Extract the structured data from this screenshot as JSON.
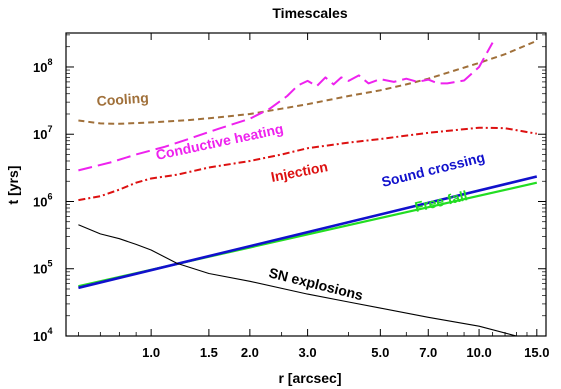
{
  "chart_data": {
    "type": "line",
    "title": "Timescales",
    "xlabel": "r [arcsec]",
    "ylabel": "t [yrs]",
    "x_scale": "log",
    "y_scale": "log",
    "xlim": [
      0.55,
      16.0
    ],
    "ylim": [
      10000,
      320000000
    ],
    "x_ticks": [
      {
        "value": 1.0,
        "label": "1.0"
      },
      {
        "value": 1.5,
        "label": "1.5"
      },
      {
        "value": 2.0,
        "label": "2.0"
      },
      {
        "value": 3.0,
        "label": "3.0"
      },
      {
        "value": 5.0,
        "label": "5.0"
      },
      {
        "value": 7.0,
        "label": "7.0"
      },
      {
        "value": 10.0,
        "label": "10.0"
      },
      {
        "value": 15.0,
        "label": "15.0"
      }
    ],
    "y_ticks": [
      {
        "value": 10000,
        "base": "10",
        "exp": "4"
      },
      {
        "value": 100000,
        "base": "10",
        "exp": "5"
      },
      {
        "value": 1000000,
        "base": "10",
        "exp": "6"
      },
      {
        "value": 10000000,
        "base": "10",
        "exp": "7"
      },
      {
        "value": 100000000,
        "base": "10",
        "exp": "8"
      }
    ],
    "series": [
      {
        "name": "Cooling",
        "color": "#a0703a",
        "dash": "dashed",
        "points": [
          [
            0.6,
            16000000
          ],
          [
            0.7,
            14500000
          ],
          [
            0.8,
            14300000
          ],
          [
            1.0,
            15000000
          ],
          [
            1.3,
            16200000
          ],
          [
            1.6,
            17800000
          ],
          [
            2.0,
            20000000
          ],
          [
            2.5,
            24000000
          ],
          [
            3.0,
            28000000
          ],
          [
            4.0,
            37000000
          ],
          [
            5.0,
            45000000
          ],
          [
            6.0,
            55000000
          ],
          [
            7.0,
            67000000
          ],
          [
            8.0,
            82000000
          ],
          [
            10.0,
            115000000
          ],
          [
            12.0,
            155000000
          ],
          [
            15.0,
            245000000
          ]
        ]
      },
      {
        "name": "Conductive heating",
        "color": "#ee22ee",
        "dash": "long-dashed",
        "points": [
          [
            0.6,
            2900000
          ],
          [
            0.75,
            3800000
          ],
          [
            0.9,
            5000000
          ],
          [
            1.1,
            6500000
          ],
          [
            1.3,
            8500000
          ],
          [
            1.6,
            12000000
          ],
          [
            2.0,
            17000000
          ],
          [
            2.3,
            24000000
          ],
          [
            2.6,
            37000000
          ],
          [
            2.8,
            53000000
          ],
          [
            3.0,
            62000000
          ],
          [
            3.2,
            52000000
          ],
          [
            3.4,
            70000000
          ],
          [
            3.6,
            55000000
          ],
          [
            3.8,
            70000000
          ],
          [
            4.0,
            62000000
          ],
          [
            4.3,
            75000000
          ],
          [
            4.6,
            57000000
          ],
          [
            5.0,
            66000000
          ],
          [
            5.5,
            60000000
          ],
          [
            6.0,
            67000000
          ],
          [
            6.5,
            60000000
          ],
          [
            7.0,
            65000000
          ],
          [
            7.5,
            57000000
          ],
          [
            8.0,
            57000000
          ],
          [
            9.0,
            63000000
          ],
          [
            10.0,
            100000000
          ],
          [
            11.0,
            230000000
          ]
        ]
      },
      {
        "name": "Injection",
        "color": "#dd1111",
        "dash": "dash-dot",
        "points": [
          [
            0.6,
            1050000
          ],
          [
            0.7,
            1200000
          ],
          [
            0.8,
            1500000
          ],
          [
            0.9,
            1900000
          ],
          [
            1.0,
            2200000
          ],
          [
            1.2,
            2500000
          ],
          [
            1.5,
            3200000
          ],
          [
            2.0,
            4000000
          ],
          [
            2.5,
            5000000
          ],
          [
            3.0,
            6200000
          ],
          [
            4.0,
            7500000
          ],
          [
            5.0,
            8500000
          ],
          [
            7.0,
            10500000
          ],
          [
            10.0,
            12500000
          ],
          [
            12.0,
            12300000
          ],
          [
            15.0,
            10200000
          ]
        ]
      },
      {
        "name": "Sound crossing",
        "color": "#1111cc",
        "dash": "solid",
        "points": [
          [
            0.6,
            52000
          ],
          [
            15.0,
            2350000
          ]
        ]
      },
      {
        "name": "Free fall",
        "color": "#22dd22",
        "dash": "solid",
        "points": [
          [
            0.6,
            55000
          ],
          [
            15.0,
            1900000
          ]
        ]
      },
      {
        "name": "SN explosions",
        "color": "#000000",
        "dash": "solid",
        "points": [
          [
            0.6,
            450000
          ],
          [
            0.7,
            330000
          ],
          [
            0.8,
            280000
          ],
          [
            0.9,
            230000
          ],
          [
            1.0,
            190000
          ],
          [
            1.2,
            120000
          ],
          [
            1.5,
            85000
          ],
          [
            2.0,
            65000
          ],
          [
            3.0,
            42000
          ],
          [
            4.0,
            32000
          ],
          [
            5.0,
            26000
          ],
          [
            7.0,
            19000
          ],
          [
            10.0,
            14000
          ],
          [
            13.0,
            10000
          ]
        ]
      }
    ],
    "annotations": [
      {
        "text": "Cooling",
        "series": "Cooling",
        "color": "#a0703a"
      },
      {
        "text": "Conductive heating",
        "series": "Conductive heating",
        "color": "#ee22ee"
      },
      {
        "text": "Injection",
        "series": "Injection",
        "color": "#dd1111"
      },
      {
        "text": "Sound crossing",
        "series": "Sound crossing",
        "color": "#1111cc"
      },
      {
        "text": "Free fall",
        "series": "Free fall",
        "color": "#22dd22"
      },
      {
        "text": "SN explosions",
        "series": "SN explosions",
        "color": "#000000"
      }
    ],
    "grid": false,
    "legend": "none"
  }
}
